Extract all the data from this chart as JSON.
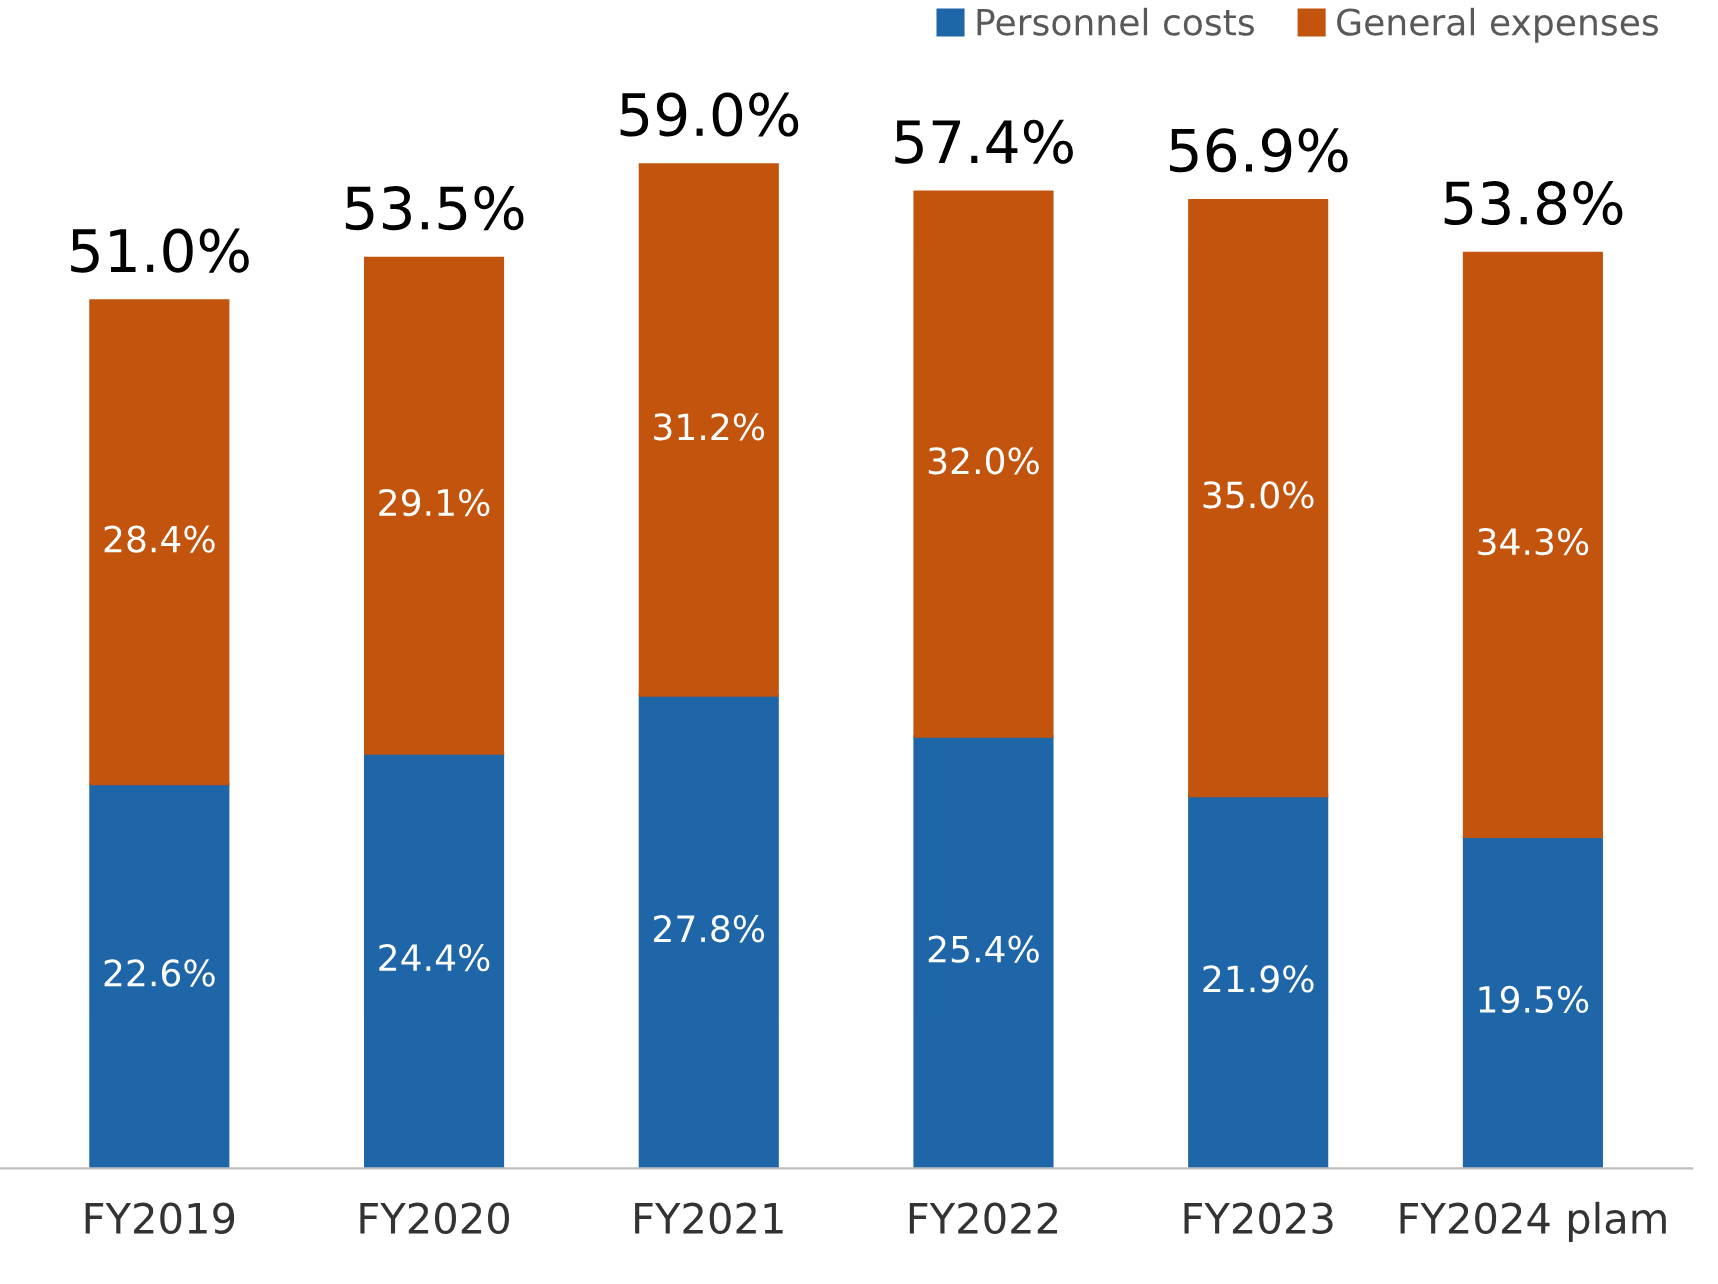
{
  "chart_data": {
    "type": "bar",
    "stacked": true,
    "legend": "top right",
    "grid": false,
    "categories": [
      "FY2019",
      "FY2020",
      "FY2021",
      "FY2022",
      "FY2023",
      "FY2024 plam"
    ],
    "series": [
      {
        "name": "Personnel costs",
        "color": "#1f66a8",
        "values": [
          22.6,
          24.4,
          27.8,
          25.4,
          21.9,
          19.5
        ],
        "value_labels": [
          "22.6%",
          "24.4%",
          "27.8%",
          "25.4%",
          "21.9%",
          "19.5%"
        ]
      },
      {
        "name": "General expenses",
        "color": "#c2540e",
        "values": [
          28.4,
          29.1,
          31.2,
          32.0,
          35.0,
          34.3
        ],
        "value_labels": [
          "28.4%",
          "29.1%",
          "31.2%",
          "32.0%",
          "35.0%",
          "34.3%"
        ]
      }
    ],
    "totals": [
      "51.0%",
      "53.5%",
      "59.0%",
      "57.4%",
      "56.9%",
      "53.8%"
    ]
  }
}
